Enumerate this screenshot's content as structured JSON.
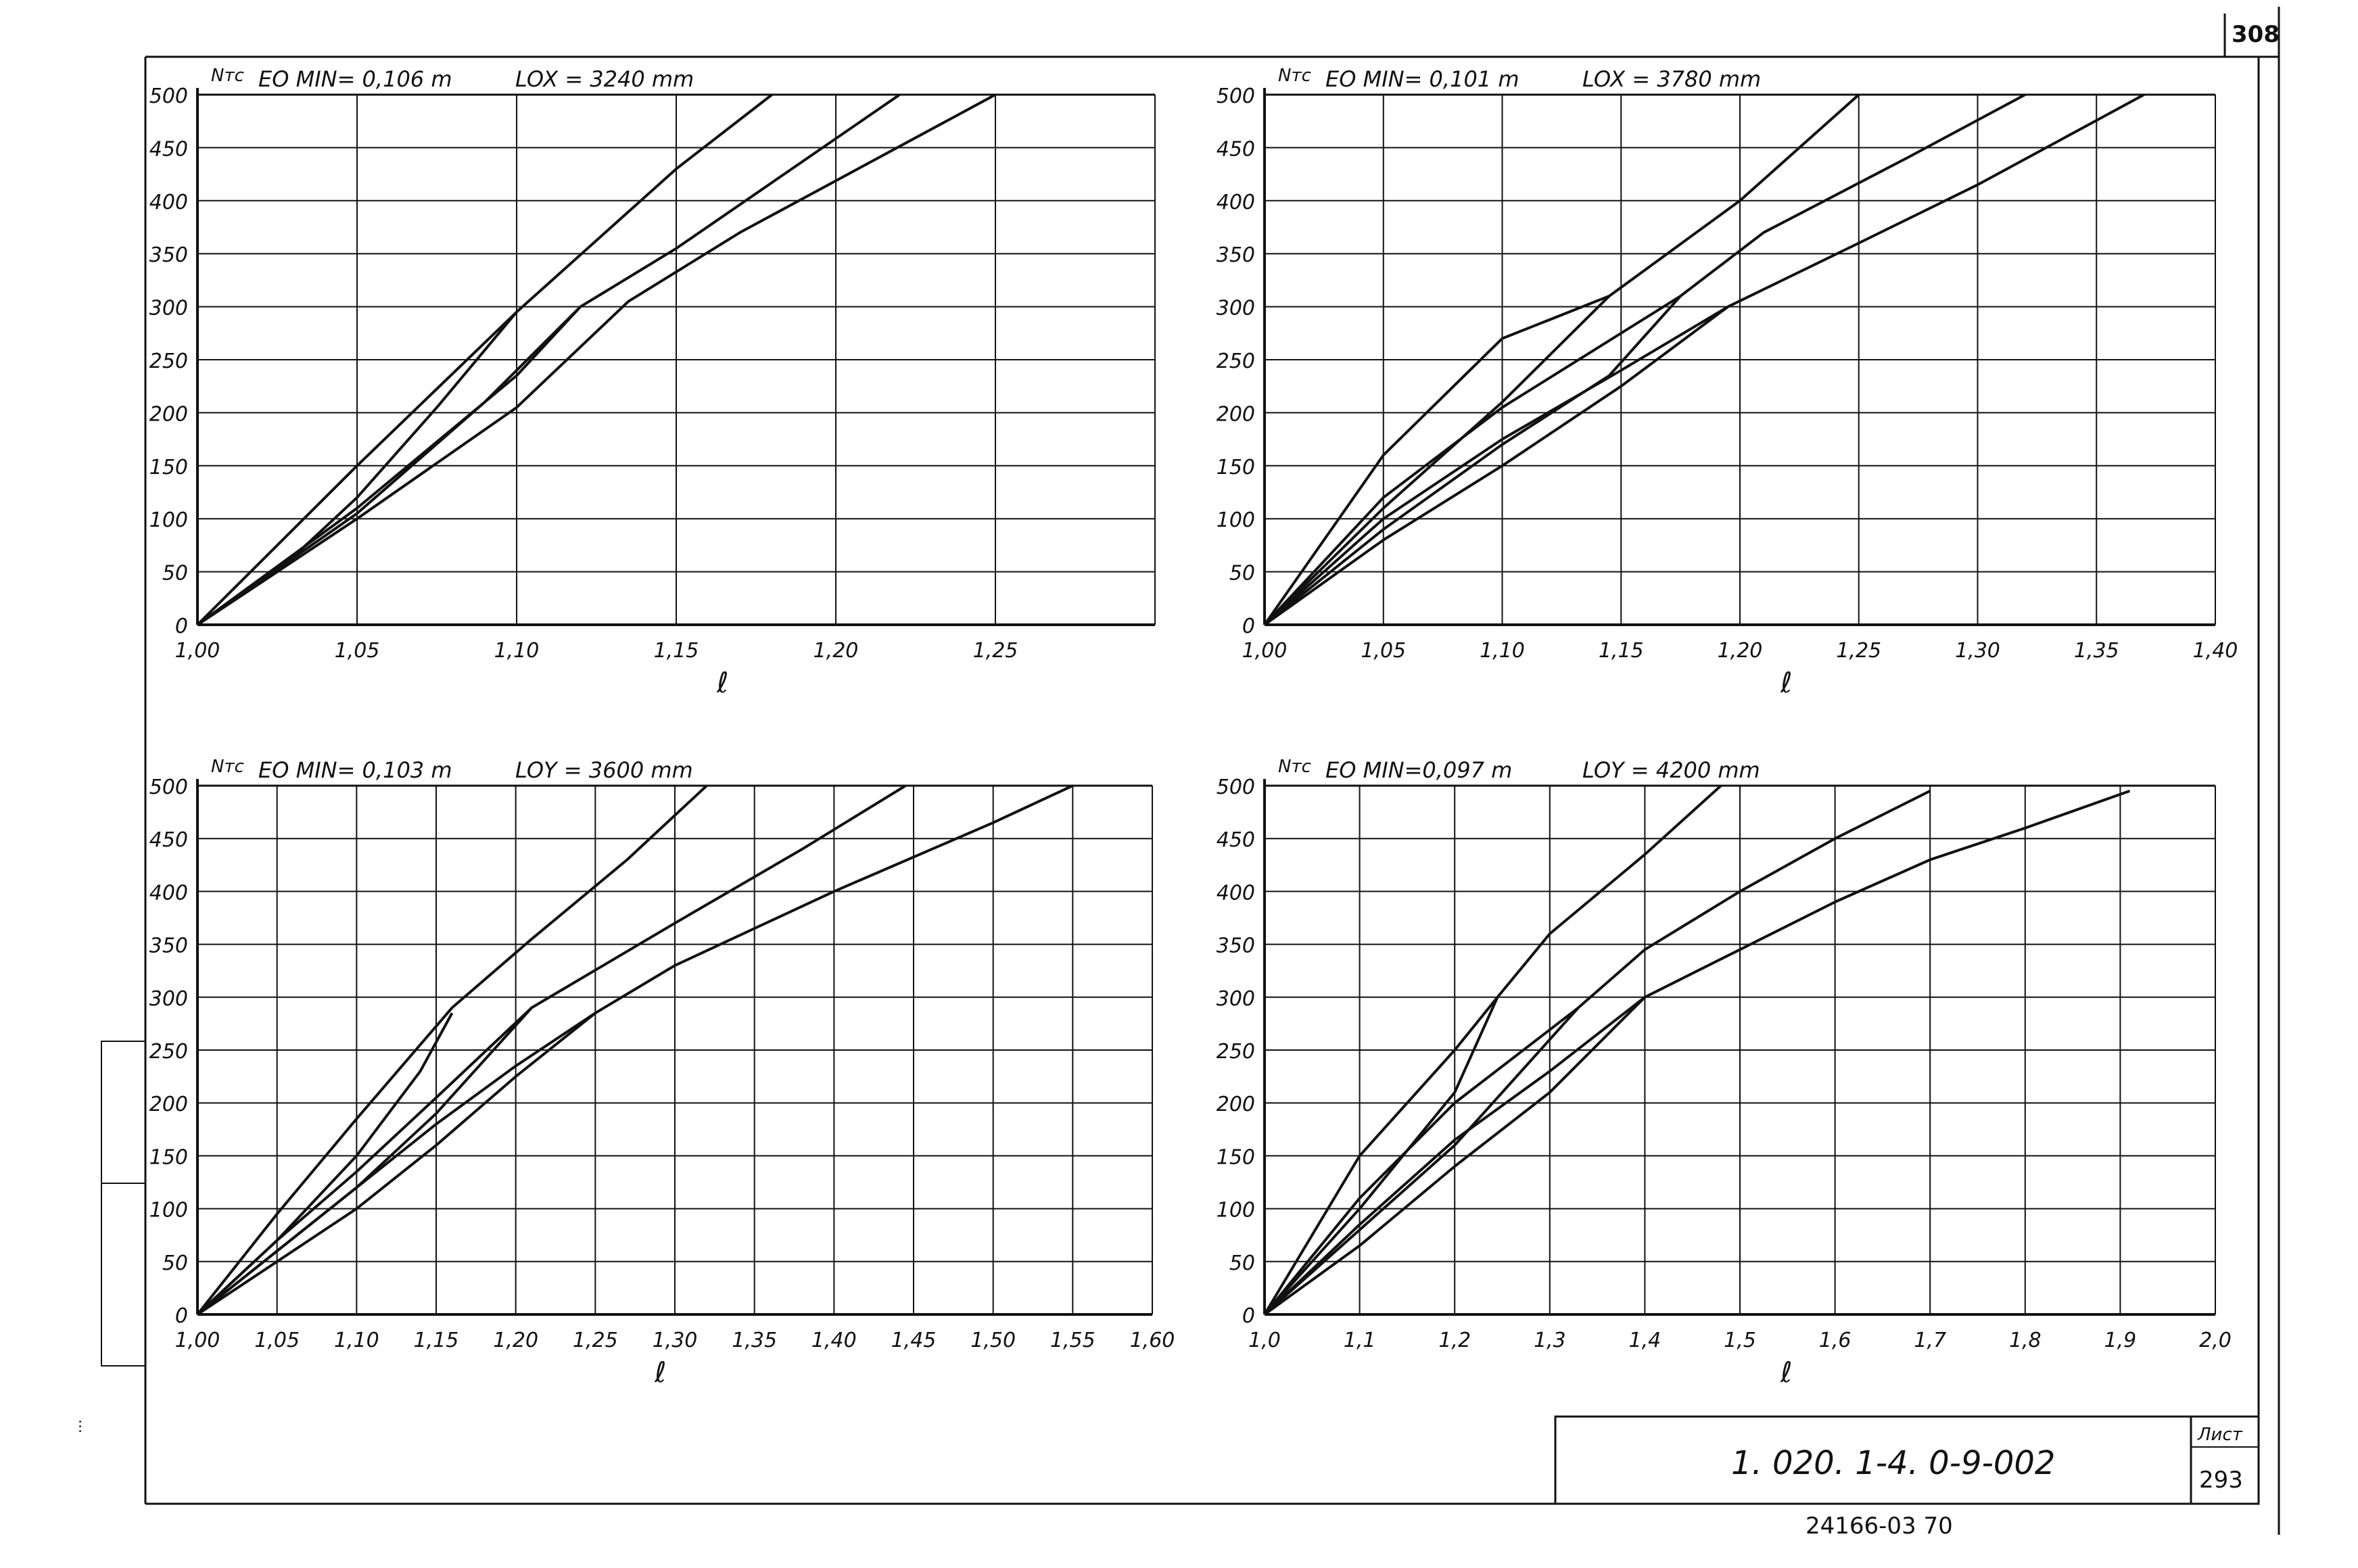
{
  "sheet_corner_number": "308",
  "stamp": {
    "designation": "1. 020. 1-4.    0-9-002",
    "sheet_label": "Лист",
    "sheet_number": "293",
    "archive_code": "24166-03    70"
  },
  "margin_note": "...",
  "chart_data": [
    {
      "type": "line",
      "title_left": "EO MIN= 0,106 m",
      "title_right": "LOX = 3240 mm",
      "ylabel": "Nтс",
      "xlabel": "ℓ",
      "xlim": [
        1.0,
        1.3
      ],
      "ylim": [
        0,
        500
      ],
      "xticks": [
        1.0,
        1.05,
        1.1,
        1.15,
        1.2,
        1.25
      ],
      "xticklabels": [
        "1,00",
        "1,05",
        "1,10",
        "1,15",
        "1,20",
        "1,25"
      ],
      "yticks": [
        0,
        50,
        100,
        150,
        200,
        250,
        300,
        350,
        400,
        450,
        500
      ],
      "yticklabels": [
        "0",
        "50",
        "100",
        "150",
        "200",
        "250",
        "300",
        "350",
        "400",
        "450",
        "500"
      ],
      "grid": true,
      "series": [
        {
          "x": [
            1.0,
            1.05,
            1.1,
            1.15,
            1.18
          ],
          "y": [
            0,
            150,
            295,
            430,
            500
          ]
        },
        {
          "x": [
            1.0,
            1.05,
            1.1,
            1.12,
            1.15,
            1.22
          ],
          "y": [
            0,
            110,
            235,
            300,
            355,
            500
          ]
        },
        {
          "x": [
            1.0,
            1.05,
            1.1,
            1.135,
            1.17,
            1.25
          ],
          "y": [
            0,
            100,
            205,
            305,
            370,
            500
          ]
        },
        {
          "x": [
            1.0,
            1.025,
            1.05,
            1.075,
            1.1
          ],
          "y": [
            0,
            50,
            120,
            205,
            295
          ]
        },
        {
          "x": [
            1.0,
            1.05,
            1.09,
            1.12
          ],
          "y": [
            0,
            105,
            210,
            300
          ]
        }
      ]
    },
    {
      "type": "line",
      "title_left": "EO MIN= 0,101 m",
      "title_right": "LOX = 3780 mm",
      "ylabel": "Nтс",
      "xlabel": "ℓ",
      "xlim": [
        1.0,
        1.4
      ],
      "ylim": [
        0,
        500
      ],
      "xticks": [
        1.0,
        1.05,
        1.1,
        1.15,
        1.2,
        1.25,
        1.3,
        1.35,
        1.4
      ],
      "xticklabels": [
        "1,00",
        "1,05",
        "1,10",
        "1,15",
        "1,20",
        "1,25",
        "1,30",
        "1,35",
        "1,40"
      ],
      "yticks": [
        0,
        50,
        100,
        150,
        200,
        250,
        300,
        350,
        400,
        450,
        500
      ],
      "yticklabels": [
        "0",
        "50",
        "100",
        "150",
        "200",
        "250",
        "300",
        "350",
        "400",
        "450",
        "500"
      ],
      "grid": true,
      "series": [
        {
          "x": [
            1.0,
            1.05,
            1.1,
            1.145,
            1.2,
            1.25
          ],
          "y": [
            0,
            160,
            270,
            310,
            400,
            500
          ]
        },
        {
          "x": [
            1.0,
            1.05,
            1.1,
            1.175,
            1.21,
            1.27,
            1.32
          ],
          "y": [
            0,
            120,
            205,
            310,
            370,
            440,
            500
          ]
        },
        {
          "x": [
            1.0,
            1.05,
            1.1,
            1.15,
            1.195,
            1.25,
            1.3,
            1.37
          ],
          "y": [
            0,
            100,
            175,
            240,
            300,
            360,
            415,
            500
          ]
        },
        {
          "x": [
            1.0,
            1.05,
            1.1,
            1.145
          ],
          "y": [
            0,
            110,
            210,
            310
          ]
        },
        {
          "x": [
            1.0,
            1.05,
            1.1,
            1.145,
            1.175
          ],
          "y": [
            0,
            90,
            170,
            235,
            310
          ]
        },
        {
          "x": [
            1.0,
            1.05,
            1.1,
            1.15,
            1.195
          ],
          "y": [
            0,
            80,
            150,
            225,
            300
          ]
        }
      ]
    },
    {
      "type": "line",
      "title_left": "EO MIN= 0,103 m",
      "title_right": "LOY = 3600 mm",
      "ylabel": "Nтс",
      "xlabel": "ℓ",
      "xlim": [
        1.0,
        1.6
      ],
      "ylim": [
        0,
        500
      ],
      "xticks": [
        1.0,
        1.05,
        1.1,
        1.15,
        1.2,
        1.25,
        1.3,
        1.35,
        1.4,
        1.45,
        1.5,
        1.55,
        1.6
      ],
      "xticklabels": [
        "1,00",
        "1,05",
        "1,10",
        "1,15",
        "1,20",
        "1,25",
        "1,30",
        "1,35",
        "1,40",
        "1,45",
        "1,50",
        "1,55",
        "1,60"
      ],
      "yticks": [
        0,
        50,
        100,
        150,
        200,
        250,
        300,
        350,
        400,
        450,
        500
      ],
      "yticklabels": [
        "0",
        "50",
        "100",
        "150",
        "200",
        "250",
        "300",
        "350",
        "400",
        "450",
        "500"
      ],
      "grid": true,
      "series": [
        {
          "x": [
            1.0,
            1.05,
            1.1,
            1.16,
            1.21,
            1.27,
            1.32
          ],
          "y": [
            0,
            95,
            185,
            290,
            355,
            430,
            500
          ]
        },
        {
          "x": [
            1.0,
            1.05,
            1.1,
            1.15,
            1.21,
            1.3,
            1.38,
            1.445
          ],
          "y": [
            0,
            70,
            135,
            205,
            290,
            370,
            440,
            500
          ]
        },
        {
          "x": [
            1.0,
            1.05,
            1.1,
            1.15,
            1.2,
            1.25,
            1.3,
            1.4,
            1.5,
            1.55
          ],
          "y": [
            0,
            60,
            120,
            180,
            235,
            285,
            330,
            400,
            465,
            500
          ]
        },
        {
          "x": [
            1.0,
            1.05,
            1.1,
            1.14,
            1.16
          ],
          "y": [
            0,
            70,
            150,
            230,
            285
          ]
        },
        {
          "x": [
            1.0,
            1.05,
            1.1,
            1.15,
            1.21
          ],
          "y": [
            0,
            60,
            120,
            190,
            290
          ]
        },
        {
          "x": [
            1.0,
            1.05,
            1.1,
            1.15,
            1.2,
            1.25
          ],
          "y": [
            0,
            50,
            100,
            160,
            225,
            285
          ]
        }
      ]
    },
    {
      "type": "line",
      "title_left": "EO MIN=0,097 m",
      "title_right": "LOY = 4200 mm",
      "ylabel": "Nтс",
      "xlabel": "ℓ",
      "xlim": [
        1.0,
        2.0
      ],
      "ylim": [
        0,
        500
      ],
      "xticks": [
        1.0,
        1.1,
        1.2,
        1.3,
        1.4,
        1.5,
        1.6,
        1.7,
        1.8,
        1.9,
        2.0
      ],
      "xticklabels": [
        "1,0",
        "1,1",
        "1,2",
        "1,3",
        "1,4",
        "1,5",
        "1,6",
        "1,7",
        "1,8",
        "1,9",
        "2,0"
      ],
      "yticks": [
        0,
        50,
        100,
        150,
        200,
        250,
        300,
        350,
        400,
        450,
        500
      ],
      "yticklabels": [
        "0",
        "50",
        "100",
        "150",
        "200",
        "250",
        "300",
        "350",
        "400",
        "450",
        "500"
      ],
      "grid": true,
      "series": [
        {
          "x": [
            1.0,
            1.1,
            1.2,
            1.245,
            1.3,
            1.4,
            1.48
          ],
          "y": [
            0,
            150,
            250,
            300,
            360,
            435,
            500
          ]
        },
        {
          "x": [
            1.0,
            1.1,
            1.2,
            1.33,
            1.4,
            1.5,
            1.6,
            1.7
          ],
          "y": [
            0,
            110,
            200,
            290,
            345,
            400,
            450,
            495
          ]
        },
        {
          "x": [
            1.0,
            1.1,
            1.2,
            1.3,
            1.4,
            1.5,
            1.6,
            1.7,
            1.8,
            1.91
          ],
          "y": [
            0,
            85,
            165,
            230,
            300,
            345,
            390,
            430,
            460,
            495
          ]
        },
        {
          "x": [
            1.0,
            1.1,
            1.2,
            1.245
          ],
          "y": [
            0,
            100,
            210,
            300
          ]
        },
        {
          "x": [
            1.0,
            1.1,
            1.2,
            1.33
          ],
          "y": [
            0,
            80,
            160,
            290
          ]
        },
        {
          "x": [
            1.0,
            1.1,
            1.2,
            1.3,
            1.4
          ],
          "y": [
            0,
            65,
            140,
            210,
            300
          ]
        }
      ]
    }
  ]
}
